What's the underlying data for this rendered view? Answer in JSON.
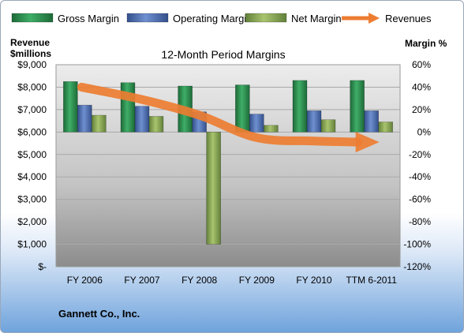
{
  "chart_data": {
    "type": "bar",
    "title": "12-Month Period Margins",
    "company": "Gannett Co., Inc.",
    "y_left_label_line1": "Revenue",
    "y_left_label_line2": "$millions",
    "y_right_label": "Margin %",
    "categories": [
      "FY 2006",
      "FY 2007",
      "FY 2008",
      "FY 2009",
      "FY 2010",
      "TTM 6-2011"
    ],
    "ylim_left": [
      0,
      9000
    ],
    "ylim_right": [
      -120,
      60
    ],
    "left_ticks": [
      "$-",
      "$1,000",
      "$2,000",
      "$3,000",
      "$4,000",
      "$5,000",
      "$6,000",
      "$7,000",
      "$8,000",
      "$9,000"
    ],
    "right_ticks": [
      "-120%",
      "-100%",
      "-80%",
      "-60%",
      "-40%",
      "-20%",
      "0%",
      "20%",
      "40%",
      "60%"
    ],
    "series": [
      {
        "name": "Gross Margin",
        "axis": "right",
        "color": "#2e8b4f",
        "values": [
          45,
          44,
          41,
          42,
          46,
          46
        ]
      },
      {
        "name": "Operating Margin",
        "axis": "right",
        "color": "#4f72b8",
        "values": [
          24,
          23,
          18,
          16,
          19,
          19
        ]
      },
      {
        "name": "Net Margin",
        "axis": "right",
        "color": "#8fae4f",
        "values": [
          15,
          14,
          -100,
          6,
          11,
          9
        ]
      },
      {
        "name": "Revenues",
        "axis": "left",
        "type": "line",
        "color": "#ef8a3c",
        "values": [
          8000,
          7450,
          6750,
          5750,
          5600,
          5550
        ]
      }
    ],
    "grid": true,
    "legend_position": "top"
  }
}
